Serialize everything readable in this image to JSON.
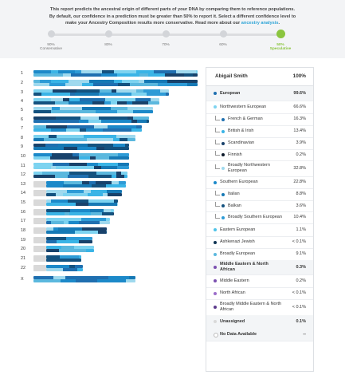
{
  "intro": {
    "line1": "This report predicts the ancestral origin of different parts of your DNA by comparing them to reference populations.",
    "line2": "By default, our confidence in a prediction must be greater than 50% to report it. Select a different confidence level to",
    "line3": "make your Ancestry Composition results more conservative. Read more about our",
    "link": "ancestry analysis",
    "end": "."
  },
  "confidence_slider": {
    "stops": [
      {
        "pct": "90%",
        "label": "Conservative"
      },
      {
        "pct": "80%",
        "label": ""
      },
      {
        "pct": "70%",
        "label": ""
      },
      {
        "pct": "60%",
        "label": ""
      },
      {
        "pct": "50%",
        "label": "Speculative"
      }
    ],
    "selected_index": 4
  },
  "colors": {
    "northwestern": "#7dd3f0",
    "french_german": "#1f6fb0",
    "british_irish": "#3ab4e6",
    "scandinavian": "#18426b",
    "finnish": "#0d1a2b",
    "broad_nw": "#9fd9ee",
    "southern": "#1c89c9",
    "italian": "#1679b5",
    "balkan": "#14527f",
    "broad_southern": "#2e9bd6",
    "eastern": "#4fc3e8",
    "ashkenazi": "#0f3454",
    "broadly_european": "#5bb8de",
    "middle_eastern": "#7a4fb0",
    "north_african": "#9b6cc9",
    "broad_mena": "#5c3a8c",
    "unassigned": "#d9d9d9",
    "slider_active": "#8bc53f"
  },
  "chromosomes": [
    "1",
    "2",
    "3",
    "4",
    "5",
    "6",
    "7",
    "8",
    "9",
    "10",
    "11",
    "12",
    "13",
    "14",
    "15",
    "16",
    "17",
    "18",
    "19",
    "20",
    "21",
    "22",
    "X"
  ],
  "panel": {
    "name": "Abigail Smith",
    "total": "100%",
    "rows": [
      {
        "label": "European",
        "value": "99.6%",
        "level": 0,
        "region": true,
        "color": "#1f6fb0"
      },
      {
        "label": "Northwestern European",
        "value": "66.6%",
        "level": 1,
        "region": false,
        "color": "#7dd3f0"
      },
      {
        "label": "French & German",
        "value": "16.3%",
        "level": 2,
        "region": false,
        "color": "#1f6fb0"
      },
      {
        "label": "British & Irish",
        "value": "13.4%",
        "level": 2,
        "region": false,
        "color": "#3ab4e6"
      },
      {
        "label": "Scandinavian",
        "value": "3.9%",
        "level": 2,
        "region": false,
        "color": "#18426b"
      },
      {
        "label": "Finnish",
        "value": "0.2%",
        "level": 2,
        "region": false,
        "color": "#0d1a2b"
      },
      {
        "label": "Broadly Northwestern European",
        "value": "32.8%",
        "level": 2,
        "region": false,
        "color": "#9fd9ee"
      },
      {
        "label": "Southern European",
        "value": "22.8%",
        "level": 1,
        "region": false,
        "color": "#1c89c9"
      },
      {
        "label": "Italian",
        "value": "8.8%",
        "level": 2,
        "region": false,
        "color": "#1679b5"
      },
      {
        "label": "Balkan",
        "value": "3.6%",
        "level": 2,
        "region": false,
        "color": "#14527f"
      },
      {
        "label": "Broadly Southern European",
        "value": "10.4%",
        "level": 2,
        "region": false,
        "color": "#2e9bd6"
      },
      {
        "label": "Eastern European",
        "value": "1.1%",
        "level": 1,
        "region": false,
        "color": "#4fc3e8"
      },
      {
        "label": "Ashkenazi Jewish",
        "value": "< 0.1%",
        "level": 1,
        "region": false,
        "color": "#0f3454"
      },
      {
        "label": "Broadly European",
        "value": "9.1%",
        "level": 1,
        "region": false,
        "color": "#5bb8de"
      },
      {
        "label": "Middle Eastern & North African",
        "value": "0.3%",
        "level": 0,
        "region": true,
        "color": "#7a4fb0"
      },
      {
        "label": "Middle Eastern",
        "value": "0.2%",
        "level": 1,
        "region": false,
        "color": "#7a4fb0"
      },
      {
        "label": "North African",
        "value": "< 0.1%",
        "level": 1,
        "region": false,
        "color": "#9b6cc9"
      },
      {
        "label": "Broadly Middle Eastern & North African",
        "value": "< 0.1%",
        "level": 1,
        "region": false,
        "color": "#5c3a8c"
      },
      {
        "label": "Unassigned",
        "value": "0.1%",
        "level": 0,
        "region": true,
        "color": "#d9d9d9"
      },
      {
        "label": "No Data Available",
        "value": "--",
        "level": 0,
        "region": true,
        "color": "#ffffff"
      }
    ]
  }
}
